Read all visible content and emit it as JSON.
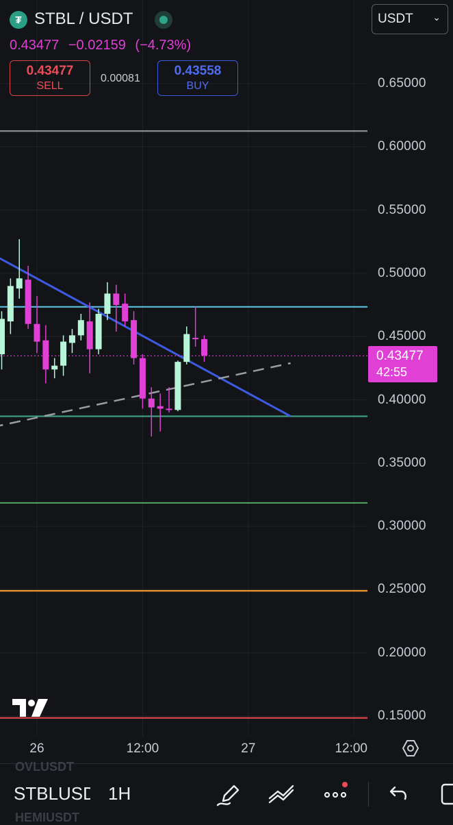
{
  "header": {
    "symbol": "STBL / USDT",
    "last_price": "0.43477",
    "change": "−0.02159",
    "change_pct": "(−4.73%)",
    "sell_price": "0.43477",
    "sell_label": "SELL",
    "spread": "0.00081",
    "buy_price": "0.43558",
    "buy_label": "BUY",
    "currency": "USDT"
  },
  "price_tag": {
    "price": "0.43477",
    "countdown": "42:55"
  },
  "colors": {
    "background": "#131417",
    "bull": "#b8f5d8",
    "bear": "#e040d6",
    "accent_price": "#e040d6",
    "sell": "#ea4d57",
    "buy": "#4e6cf0"
  },
  "bottom_bar": {
    "symbol": "STBLUSDT",
    "interval": "1H",
    "ghost_top": "OVLUSDT",
    "ghost_bottom": "HEMIUSDT",
    "icons": [
      "pencil-icon",
      "drawing-tools-icon",
      "more-icon",
      "undo-icon",
      "layout-icon"
    ]
  },
  "chart_data": {
    "type": "candlestick",
    "interval": "1H",
    "ylim": [
      0.13,
      0.69
    ],
    "y_ticks": [
      "0.65000",
      "0.60000",
      "0.55000",
      "0.50000",
      "0.45000",
      "0.40000",
      "0.35000",
      "0.30000",
      "0.25000",
      "0.20000",
      "0.15000"
    ],
    "x_ticks": [
      "26",
      "12:00",
      "27",
      "12:00"
    ],
    "x_tick_index": [
      4,
      16,
      28,
      40
    ],
    "candles": [
      {
        "o": 0.436,
        "h": 0.47,
        "l": 0.424,
        "c": 0.464
      },
      {
        "o": 0.462,
        "h": 0.496,
        "l": 0.452,
        "c": 0.49
      },
      {
        "o": 0.488,
        "h": 0.527,
        "l": 0.48,
        "c": 0.496
      },
      {
        "o": 0.495,
        "h": 0.506,
        "l": 0.456,
        "c": 0.46
      },
      {
        "o": 0.46,
        "h": 0.482,
        "l": 0.437,
        "c": 0.446
      },
      {
        "o": 0.447,
        "h": 0.459,
        "l": 0.413,
        "c": 0.424
      },
      {
        "o": 0.424,
        "h": 0.433,
        "l": 0.417,
        "c": 0.427
      },
      {
        "o": 0.427,
        "h": 0.451,
        "l": 0.419,
        "c": 0.446
      },
      {
        "o": 0.445,
        "h": 0.456,
        "l": 0.437,
        "c": 0.451
      },
      {
        "o": 0.451,
        "h": 0.468,
        "l": 0.447,
        "c": 0.463
      },
      {
        "o": 0.462,
        "h": 0.477,
        "l": 0.421,
        "c": 0.44
      },
      {
        "o": 0.44,
        "h": 0.472,
        "l": 0.436,
        "c": 0.468
      },
      {
        "o": 0.468,
        "h": 0.493,
        "l": 0.463,
        "c": 0.484
      },
      {
        "o": 0.484,
        "h": 0.491,
        "l": 0.454,
        "c": 0.475
      },
      {
        "o": 0.476,
        "h": 0.484,
        "l": 0.458,
        "c": 0.462
      },
      {
        "o": 0.463,
        "h": 0.47,
        "l": 0.428,
        "c": 0.433
      },
      {
        "o": 0.433,
        "h": 0.436,
        "l": 0.393,
        "c": 0.401
      },
      {
        "o": 0.401,
        "h": 0.41,
        "l": 0.371,
        "c": 0.394
      },
      {
        "o": 0.395,
        "h": 0.405,
        "l": 0.375,
        "c": 0.393
      },
      {
        "o": 0.393,
        "h": 0.41,
        "l": 0.39,
        "c": 0.392
      },
      {
        "o": 0.392,
        "h": 0.431,
        "l": 0.391,
        "c": 0.43
      },
      {
        "o": 0.43,
        "h": 0.458,
        "l": 0.428,
        "c": 0.452
      },
      {
        "o": 0.449,
        "h": 0.474,
        "l": 0.442,
        "c": 0.448
      },
      {
        "o": 0.448,
        "h": 0.451,
        "l": 0.43,
        "c": 0.435
      }
    ],
    "horizontal_lines": [
      {
        "price": 0.6125,
        "color": "#8a8c92"
      },
      {
        "price": 0.4735,
        "color": "#5bc0de"
      },
      {
        "price": 0.387,
        "color": "#3f9c7f"
      },
      {
        "price": 0.3185,
        "color": "#4f9e5f"
      },
      {
        "price": 0.249,
        "color": "#f0962e"
      },
      {
        "price": 0.1485,
        "color": "#d9434c"
      }
    ],
    "trendlines": [
      {
        "from": [
          -7.0,
          0.5375
        ],
        "to": [
          32.8,
          0.387
        ],
        "color": "#3d5be0",
        "style": "solid"
      },
      {
        "from": [
          -7.0,
          0.3695
        ],
        "to": [
          32.8,
          0.429
        ],
        "color": "#9a9ca3",
        "style": "dashed"
      }
    ],
    "last_price": 0.43477
  }
}
